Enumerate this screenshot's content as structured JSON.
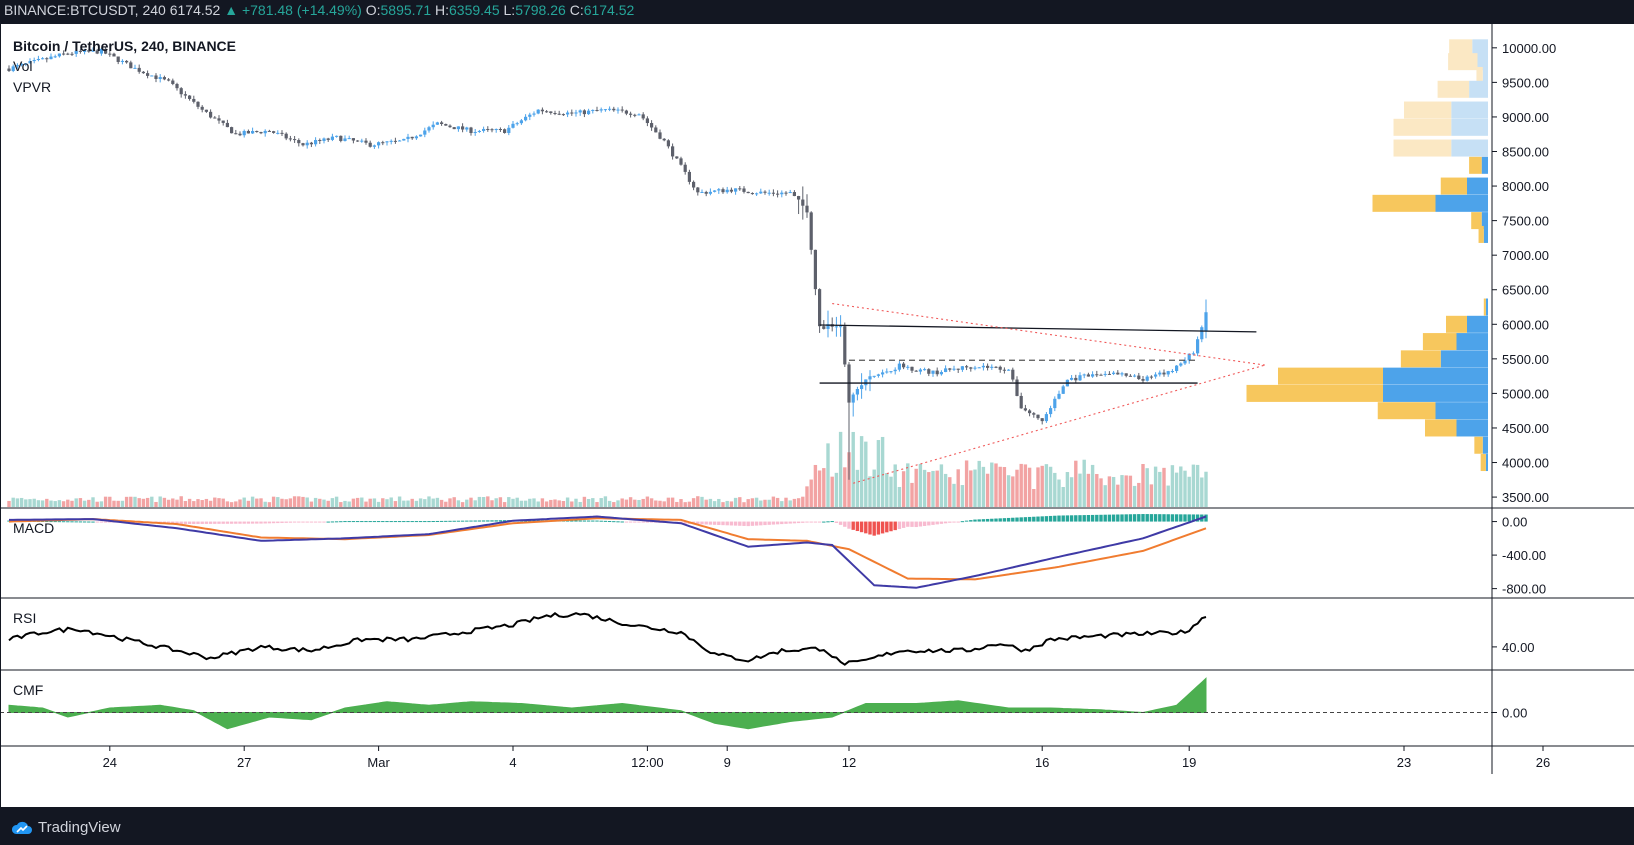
{
  "header": {
    "symbol": "BINANCE:BTCUSDT, 240",
    "last": "6174.52",
    "change": "▲ +781.48 (+14.49%)",
    "open_label": "O:",
    "open": "5895.71",
    "high_label": "H:",
    "high": "6359.45",
    "low_label": "L:",
    "low": "5798.26",
    "close_label": "C:",
    "close": "6174.52"
  },
  "legend": {
    "title": "Bitcoin / TetherUS, 240, BINANCE",
    "vol": "Vol",
    "vpvr": "VPVR",
    "macd": "MACD",
    "rsi": "RSI",
    "cmf": "CMF"
  },
  "footer": {
    "brand": "TradingView"
  },
  "colors": {
    "up": "#4da3ea",
    "down": "#5d606b",
    "vol_up": "#a8d8d2",
    "vol_down": "#f2a3a3",
    "macd_line": "#3f3aa6",
    "signal_line": "#f07c30",
    "rsi": "#000000",
    "cmf": "#4caf50",
    "vpvr_up": "#4da3ea",
    "vpvr_down": "#f7c75d"
  },
  "chart_data": [
    {
      "type": "candlestick",
      "title": "Bitcoin / TetherUS, 240, BINANCE",
      "y_ticks": [
        "10000.00",
        "9500.00",
        "9000.00",
        "8500.00",
        "8000.00",
        "7500.00",
        "7000.00",
        "6500.00",
        "6000.00",
        "5500.00",
        "5000.00",
        "4500.00",
        "4000.00",
        "3500.00"
      ],
      "x_ticks": [
        "24",
        "27",
        "Mar",
        "4",
        "12:00",
        "9",
        "12",
        "16",
        "19",
        "23",
        "26"
      ],
      "ylim": [
        3400,
        10200
      ],
      "anchors": [
        {
          "i": 0,
          "c": 9700
        },
        {
          "i": 14,
          "c": 9920
        },
        {
          "i": 22,
          "c": 9950
        },
        {
          "i": 30,
          "c": 9700
        },
        {
          "i": 38,
          "c": 9500
        },
        {
          "i": 46,
          "c": 9100
        },
        {
          "i": 54,
          "c": 8750
        },
        {
          "i": 62,
          "c": 8800
        },
        {
          "i": 70,
          "c": 8600
        },
        {
          "i": 78,
          "c": 8700
        },
        {
          "i": 86,
          "c": 8600
        },
        {
          "i": 94,
          "c": 8650
        },
        {
          "i": 102,
          "c": 8900
        },
        {
          "i": 110,
          "c": 8800
        },
        {
          "i": 118,
          "c": 8800
        },
        {
          "i": 126,
          "c": 9100
        },
        {
          "i": 134,
          "c": 9050
        },
        {
          "i": 142,
          "c": 9100
        },
        {
          "i": 150,
          "c": 9050
        },
        {
          "i": 156,
          "c": 8650
        },
        {
          "i": 164,
          "c": 7900
        },
        {
          "i": 172,
          "c": 7950
        },
        {
          "i": 180,
          "c": 7900
        },
        {
          "i": 186,
          "c": 7900
        },
        {
          "i": 190,
          "c": 7650
        },
        {
          "i": 193,
          "c": 5950
        },
        {
          "i": 198,
          "c": 6000
        },
        {
          "i": 200,
          "c": 4900
        },
        {
          "i": 204,
          "c": 5200
        },
        {
          "i": 212,
          "c": 5400
        },
        {
          "i": 220,
          "c": 5300
        },
        {
          "i": 230,
          "c": 5400
        },
        {
          "i": 238,
          "c": 5350
        },
        {
          "i": 241,
          "c": 4800
        },
        {
          "i": 246,
          "c": 4600
        },
        {
          "i": 252,
          "c": 5200
        },
        {
          "i": 262,
          "c": 5300
        },
        {
          "i": 270,
          "c": 5200
        },
        {
          "i": 276,
          "c": 5300
        },
        {
          "i": 282,
          "c": 5600
        },
        {
          "i": 285,
          "c": 6174.52
        }
      ],
      "trendlines": [
        {
          "x1_i": 193,
          "y1": 5990,
          "x2_i": 297,
          "y2": 5890,
          "style": "solid"
        },
        {
          "x1_i": 193,
          "y1": 5150,
          "x2_i": 283,
          "y2": 5150,
          "style": "solid"
        },
        {
          "x1_i": 200,
          "y1": 5480,
          "x2_i": 283,
          "y2": 5480,
          "style": "dashed"
        },
        {
          "x1_i": 196,
          "y1": 6300,
          "x2_i": 299,
          "y2": 5410,
          "style": "dotted"
        },
        {
          "x1_i": 201,
          "y1": 3700,
          "x2_i": 299,
          "y2": 5410,
          "style": "dotted"
        }
      ]
    },
    {
      "type": "bar",
      "title": "Vol",
      "note": "volume histogram, up bars teal, down bars red"
    },
    {
      "type": "bar",
      "title": "VPVR",
      "rows": [
        {
          "price": 10000,
          "up": 0.15,
          "down": 0.22
        },
        {
          "price": 9800,
          "up": 0.1,
          "down": 0.28
        },
        {
          "price": 9600,
          "up": 0.05,
          "down": 0.06
        },
        {
          "price": 9400,
          "up": 0.18,
          "down": 0.3
        },
        {
          "price": 9100,
          "up": 0.35,
          "down": 0.45
        },
        {
          "price": 8850,
          "up": 0.35,
          "down": 0.55
        },
        {
          "price": 8550,
          "up": 0.35,
          "down": 0.55
        },
        {
          "price": 8300,
          "up": 0.06,
          "down": 0.12
        },
        {
          "price": 8000,
          "up": 0.2,
          "down": 0.25
        },
        {
          "price": 7750,
          "up": 0.5,
          "down": 0.6
        },
        {
          "price": 7500,
          "up": 0.06,
          "down": 0.1
        },
        {
          "price": 7300,
          "up": 0.04,
          "down": 0.05
        },
        {
          "price": 6250,
          "up": 0.02,
          "down": 0.02
        },
        {
          "price": 6000,
          "up": 0.2,
          "down": 0.2
        },
        {
          "price": 5750,
          "up": 0.3,
          "down": 0.32
        },
        {
          "price": 5500,
          "up": 0.45,
          "down": 0.38
        },
        {
          "price": 5250,
          "up": 1.0,
          "down": 1.0
        },
        {
          "price": 5000,
          "up": 1.0,
          "down": 1.3
        },
        {
          "price": 4750,
          "up": 0.5,
          "down": 0.55
        },
        {
          "price": 4500,
          "up": 0.3,
          "down": 0.3
        },
        {
          "price": 4250,
          "up": 0.05,
          "down": 0.08
        },
        {
          "price": 4000,
          "up": 0.02,
          "down": 0.05
        }
      ]
    },
    {
      "type": "line",
      "title": "MACD",
      "y_ticks": [
        "0.00",
        "-400.00",
        "-800.00"
      ],
      "ylim": [
        -900,
        150
      ],
      "series": [
        {
          "name": "MACD",
          "anchors": [
            [
              0,
              20
            ],
            [
              20,
              30
            ],
            [
              40,
              -80
            ],
            [
              60,
              -230
            ],
            [
              80,
              -200
            ],
            [
              100,
              -150
            ],
            [
              120,
              10
            ],
            [
              140,
              60
            ],
            [
              160,
              -20
            ],
            [
              176,
              -300
            ],
            [
              190,
              -250
            ],
            [
              196,
              -280
            ],
            [
              206,
              -760
            ],
            [
              216,
              -790
            ],
            [
              230,
              -650
            ],
            [
              250,
              -420
            ],
            [
              270,
              -200
            ],
            [
              285,
              60
            ]
          ]
        },
        {
          "name": "Signal",
          "anchors": [
            [
              0,
              0
            ],
            [
              20,
              30
            ],
            [
              40,
              -30
            ],
            [
              60,
              -190
            ],
            [
              80,
              -210
            ],
            [
              100,
              -160
            ],
            [
              120,
              -20
            ],
            [
              140,
              40
            ],
            [
              160,
              20
            ],
            [
              176,
              -210
            ],
            [
              190,
              -230
            ],
            [
              200,
              -330
            ],
            [
              214,
              -680
            ],
            [
              230,
              -690
            ],
            [
              250,
              -540
            ],
            [
              270,
              -350
            ],
            [
              285,
              -80
            ]
          ]
        }
      ]
    },
    {
      "type": "line",
      "title": "RSI",
      "y_ticks": [
        "40.00"
      ],
      "ylim": [
        10,
        105
      ],
      "anchors": [
        [
          0,
          50
        ],
        [
          8,
          60
        ],
        [
          16,
          65
        ],
        [
          24,
          55
        ],
        [
          36,
          40
        ],
        [
          48,
          25
        ],
        [
          60,
          40
        ],
        [
          72,
          35
        ],
        [
          84,
          50
        ],
        [
          96,
          50
        ],
        [
          108,
          60
        ],
        [
          120,
          70
        ],
        [
          128,
          82
        ],
        [
          136,
          85
        ],
        [
          148,
          70
        ],
        [
          160,
          60
        ],
        [
          168,
          30
        ],
        [
          176,
          22
        ],
        [
          184,
          35
        ],
        [
          194,
          38
        ],
        [
          198,
          18
        ],
        [
          202,
          18
        ],
        [
          212,
          35
        ],
        [
          228,
          35
        ],
        [
          236,
          45
        ],
        [
          242,
          35
        ],
        [
          248,
          50
        ],
        [
          260,
          55
        ],
        [
          272,
          58
        ],
        [
          280,
          60
        ],
        [
          285,
          82
        ]
      ]
    },
    {
      "type": "area",
      "title": "CMF",
      "y_ticks": [
        "0.00"
      ],
      "ylim": [
        -0.35,
        0.45
      ],
      "anchors": [
        [
          0,
          0.08
        ],
        [
          8,
          0.05
        ],
        [
          14,
          -0.05
        ],
        [
          24,
          0.05
        ],
        [
          36,
          0.08
        ],
        [
          44,
          0.02
        ],
        [
          52,
          -0.18
        ],
        [
          62,
          -0.05
        ],
        [
          72,
          -0.08
        ],
        [
          80,
          0.05
        ],
        [
          90,
          0.12
        ],
        [
          100,
          0.08
        ],
        [
          110,
          0.12
        ],
        [
          122,
          0.1
        ],
        [
          134,
          0.05
        ],
        [
          146,
          0.1
        ],
        [
          160,
          0.02
        ],
        [
          168,
          -0.12
        ],
        [
          176,
          -0.18
        ],
        [
          186,
          -0.1
        ],
        [
          196,
          -0.05
        ],
        [
          204,
          0.1
        ],
        [
          216,
          0.1
        ],
        [
          226,
          0.13
        ],
        [
          238,
          0.05
        ],
        [
          248,
          0.05
        ],
        [
          260,
          0.03
        ],
        [
          270,
          0.0
        ],
        [
          278,
          0.08
        ],
        [
          285,
          0.38
        ]
      ]
    }
  ]
}
